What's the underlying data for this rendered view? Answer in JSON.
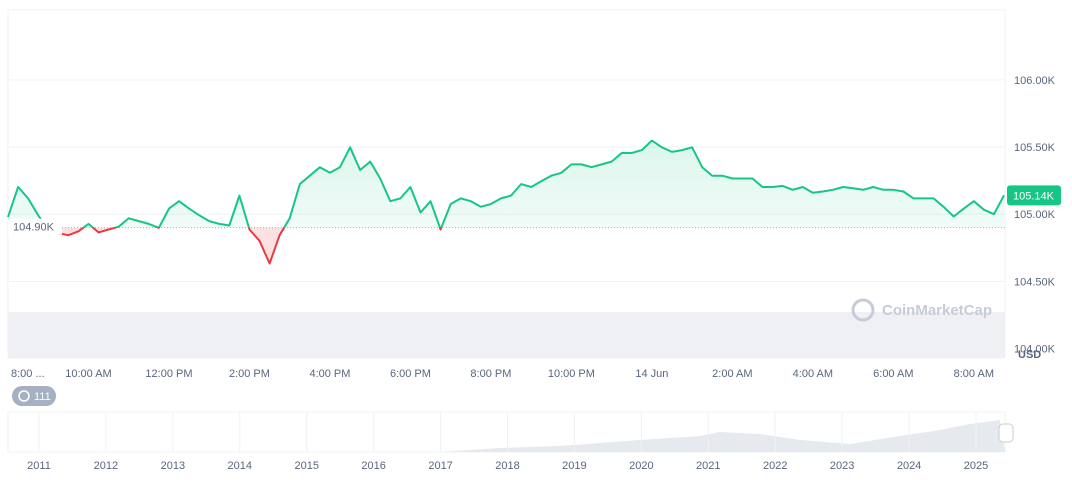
{
  "chart_data": {
    "type": "line",
    "categories": [
      "8:00 ...",
      null,
      null,
      null,
      null,
      null,
      null,
      null,
      "10:00 AM",
      null,
      null,
      null,
      null,
      null,
      null,
      null,
      "12:00 PM",
      null,
      null,
      null,
      null,
      null,
      null,
      null,
      "2:00 PM",
      null,
      null,
      null,
      null,
      null,
      null,
      null,
      "4:00 PM",
      null,
      null,
      null,
      null,
      null,
      null,
      null,
      "6:00 PM",
      null,
      null,
      null,
      null,
      null,
      null,
      null,
      "8:00 PM",
      null,
      null,
      null,
      null,
      null,
      null,
      null,
      "10:00 PM",
      null,
      null,
      null,
      null,
      null,
      null,
      null,
      "14 Jun",
      null,
      null,
      null,
      null,
      null,
      null,
      null,
      "2:00 AM",
      null,
      null,
      null,
      null,
      null,
      null,
      null,
      "4:00 AM",
      null,
      null,
      null,
      null,
      null,
      null,
      null,
      "6:00 AM",
      null,
      null,
      null,
      null,
      null,
      null,
      null,
      "8:00 AM",
      null,
      null,
      null
    ],
    "values": [
      104979,
      105203,
      105118,
      104992,
      104886,
      104857,
      104844,
      104873,
      104928,
      104865,
      104886,
      104907,
      104970,
      104949,
      104928,
      104899,
      105042,
      105097,
      105042,
      104992,
      104949,
      104928,
      104916,
      105139,
      104886,
      104802,
      104633,
      104844,
      104970,
      105224,
      105287,
      105350,
      105308,
      105350,
      105498,
      105329,
      105392,
      105266,
      105097,
      105118,
      105203,
      105013,
      105097,
      104886,
      105076,
      105118,
      105097,
      105055,
      105076,
      105118,
      105139,
      105224,
      105203,
      105245,
      105287,
      105308,
      105371,
      105371,
      105350,
      105371,
      105392,
      105456,
      105456,
      105477,
      105548,
      105498,
      105464,
      105477,
      105498,
      105350,
      105287,
      105287,
      105266,
      105266,
      105266,
      105203,
      105203,
      105211,
      105182,
      105203,
      105160,
      105169,
      105182,
      105203,
      105194,
      105182,
      105203,
      105182,
      105182,
      105169,
      105118,
      105118,
      105118,
      105055,
      104983,
      105042,
      105097,
      105034,
      105000,
      105140
    ],
    "color": "#16c784",
    "down_color": "#ea3943",
    "ylim": [
      103930,
      106520
    ],
    "yticks": [
      {
        "value": 104000,
        "label": "104.00K"
      },
      {
        "value": 104500,
        "label": "104.50K"
      },
      {
        "value": 105000,
        "label": "105.00K"
      },
      {
        "value": 105500,
        "label": "105.50K"
      },
      {
        "value": 106000,
        "label": "106.00K"
      }
    ],
    "grid": true,
    "baseline": {
      "value": 104900,
      "label": "104.90K"
    },
    "current_price": {
      "value": 105140,
      "label": "105.14K"
    },
    "currency": "USD",
    "watermark": "CoinMarketCap",
    "badge": "111",
    "navigator_years": [
      "2011",
      "2012",
      "2013",
      "2014",
      "2015",
      "2016",
      "2017",
      "2018",
      "2019",
      "2020",
      "2021",
      "2022",
      "2023",
      "2024",
      "2025"
    ]
  }
}
